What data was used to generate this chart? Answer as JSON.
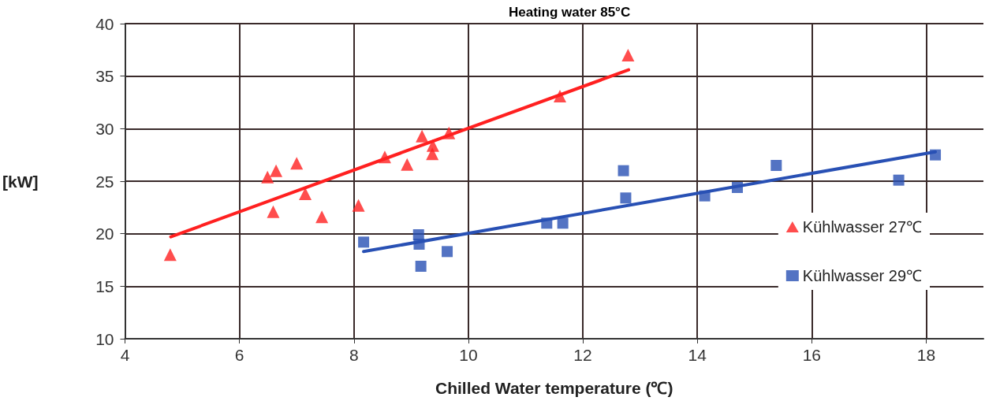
{
  "chart_data": {
    "type": "scatter",
    "title": "Heating water 85°C",
    "xlabel": "Chilled Water temperature (℃)",
    "ylabel": "[kW]",
    "xlim": [
      4,
      19
    ],
    "xticks": [
      4,
      6,
      8,
      10,
      12,
      14,
      16,
      18
    ],
    "ylim": [
      10,
      40
    ],
    "yticks": [
      10,
      15,
      20,
      25,
      30,
      35,
      40
    ],
    "grid": true,
    "legend": "right",
    "series": [
      {
        "name": "Kühlwasser 27℃",
        "color": "#ff2020",
        "marker": "triangle",
        "x": [
          4.79,
          6.49,
          6.64,
          7.0,
          6.59,
          7.15,
          7.44,
          8.08,
          8.54,
          8.93,
          9.19,
          9.38,
          9.37,
          9.66,
          11.6,
          12.79
        ],
        "values": [
          18.0,
          25.4,
          26.0,
          26.7,
          22.1,
          23.8,
          21.6,
          22.7,
          27.3,
          26.6,
          29.3,
          28.4,
          27.6,
          29.6,
          33.1,
          37.0
        ]
      },
      {
        "name": "Kühlwasser 29℃",
        "color": "#2850b4",
        "marker": "square",
        "x": [
          8.17,
          9.13,
          9.14,
          9.17,
          9.63,
          11.37,
          11.65,
          12.71,
          12.75,
          14.13,
          14.7,
          15.38,
          17.52,
          18.16
        ],
        "values": [
          19.2,
          19.9,
          19.0,
          16.9,
          18.3,
          21.0,
          21.0,
          26.0,
          23.4,
          23.6,
          24.4,
          26.5,
          25.1,
          27.5
        ]
      },
      {
        "type": "line",
        "color": "#ff2020",
        "marker": "none",
        "x": [
          4.8,
          12.8
        ],
        "values": [
          19.7,
          35.6
        ]
      },
      {
        "type": "line",
        "color": "#2850b4",
        "marker": "none",
        "x": [
          8.17,
          18.16
        ],
        "values": [
          18.3,
          27.8
        ]
      }
    ]
  }
}
